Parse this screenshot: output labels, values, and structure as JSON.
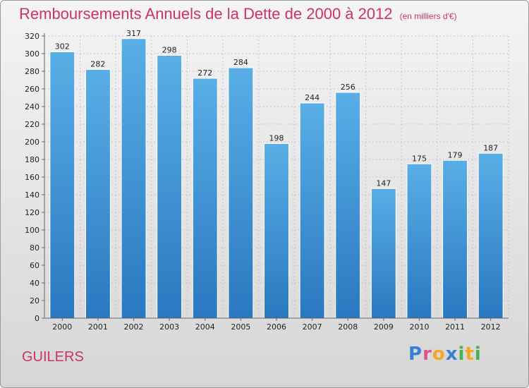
{
  "chart_data": {
    "type": "bar",
    "title": "Remboursements Annuels de la Dette de 2000 à 2012",
    "subtitle": "(en milliers d'€)",
    "categories": [
      "2000",
      "2001",
      "2002",
      "2003",
      "2004",
      "2005",
      "2006",
      "2007",
      "2008",
      "2009",
      "2010",
      "2011",
      "2012"
    ],
    "values": [
      302,
      282,
      317,
      298,
      272,
      284,
      198,
      244,
      256,
      147,
      175,
      179,
      187
    ],
    "ylim": [
      0,
      320
    ],
    "yticks": [
      0,
      20,
      40,
      60,
      80,
      100,
      120,
      140,
      160,
      180,
      200,
      220,
      240,
      260,
      280,
      300,
      320
    ],
    "grid": true,
    "xlabel": "",
    "ylabel": "",
    "colors": {
      "bar_top": "#5aaee6",
      "bar_bottom": "#2a78c0",
      "title": "#cc3366"
    }
  },
  "footer": {
    "town": "GUILERS"
  },
  "logo": {
    "text": "Proxiti"
  }
}
